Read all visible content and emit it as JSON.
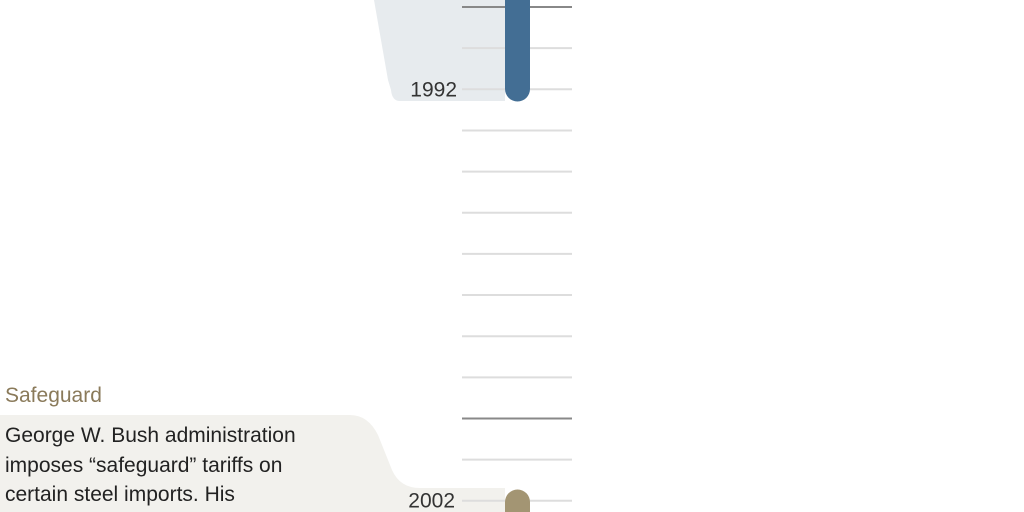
{
  "events": [
    {
      "year": "1992"
    },
    {
      "year": "2002",
      "title": "Safeguard",
      "description": "George W. Bush administration imposes “safeguard” tariffs on certain steel imports. His"
    }
  ]
}
